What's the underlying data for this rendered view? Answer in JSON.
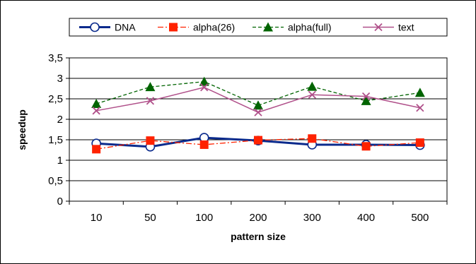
{
  "chart_data": {
    "type": "line",
    "title": "",
    "xlabel": "pattern size",
    "ylabel": "speedup",
    "categories": [
      "10",
      "50",
      "100",
      "200",
      "300",
      "400",
      "500"
    ],
    "ylim": [
      0,
      3.5
    ],
    "yticks": [
      0,
      0.5,
      1,
      1.5,
      2,
      2.5,
      3,
      3.5
    ],
    "ytick_labels": [
      "0",
      "0,5",
      "1",
      "1,5",
      "2",
      "2,5",
      "3",
      "3,5"
    ],
    "grid": "horizontal",
    "legend": "top",
    "series": [
      {
        "name": "DNA",
        "values": [
          1.41,
          1.33,
          1.55,
          1.48,
          1.38,
          1.38,
          1.37
        ],
        "color": "#0a2a8c",
        "marker": "circle-open",
        "line": "solid-thick"
      },
      {
        "name": "alpha(26)",
        "values": [
          1.27,
          1.48,
          1.38,
          1.49,
          1.53,
          1.34,
          1.43
        ],
        "color": "#ff2200",
        "marker": "square",
        "line": "dash-dot"
      },
      {
        "name": "alpha(full)",
        "values": [
          2.38,
          2.79,
          2.92,
          2.34,
          2.8,
          2.45,
          2.65
        ],
        "color": "#006400",
        "marker": "triangle",
        "line": "dashed"
      },
      {
        "name": "text",
        "values": [
          2.21,
          2.45,
          2.78,
          2.17,
          2.6,
          2.56,
          2.28
        ],
        "color": "#b0508a",
        "marker": "x",
        "line": "solid"
      }
    ]
  }
}
